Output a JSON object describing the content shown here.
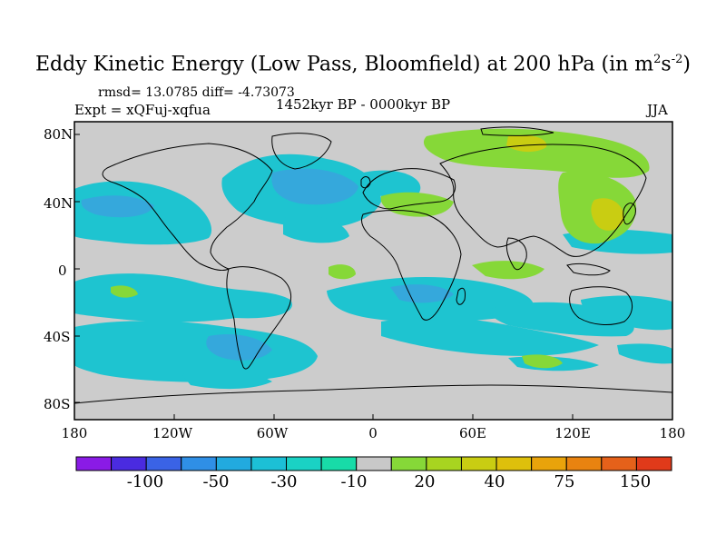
{
  "title": {
    "main": "Eddy Kinetic Energy (Low Pass, Bloomfield) at 200 hPa (in m",
    "sup1": "2",
    "mid": "s",
    "sup2": "-2",
    "end": ")"
  },
  "stats": "rmsd= 13.0785  diff= -4.73073",
  "expt": "Expt = xQFuj-xqfua",
  "period": "1452kyr BP - 0000kyr BP",
  "season": "JJA",
  "lat_labels": [
    "80N",
    "40N",
    "0",
    "40S",
    "80S"
  ],
  "lon_labels": [
    "180",
    "120W",
    "60W",
    "0",
    "60E",
    "120E",
    "180"
  ],
  "colorbar": {
    "colors": [
      "#8a1be6",
      "#4a2be0",
      "#3a63e6",
      "#2f8fe6",
      "#22aadf",
      "#1cc0d6",
      "#1ad2c4",
      "#18dba8",
      "#c8c8c8",
      "#86d838",
      "#a8d420",
      "#c9cd12",
      "#dec00c",
      "#e9a30b",
      "#e98310",
      "#e5611a",
      "#e03a1a"
    ],
    "labels": [
      "-100",
      "-50",
      "-30",
      "-10",
      "20",
      "40",
      "75",
      "150"
    ]
  },
  "colors": {
    "ocean_neutral": "#cccccc",
    "blue_low": "#1fc0d3",
    "blue_mid": "#33a8dc",
    "green_high": "#86d838",
    "yellow_high": "#c9cd12"
  }
}
